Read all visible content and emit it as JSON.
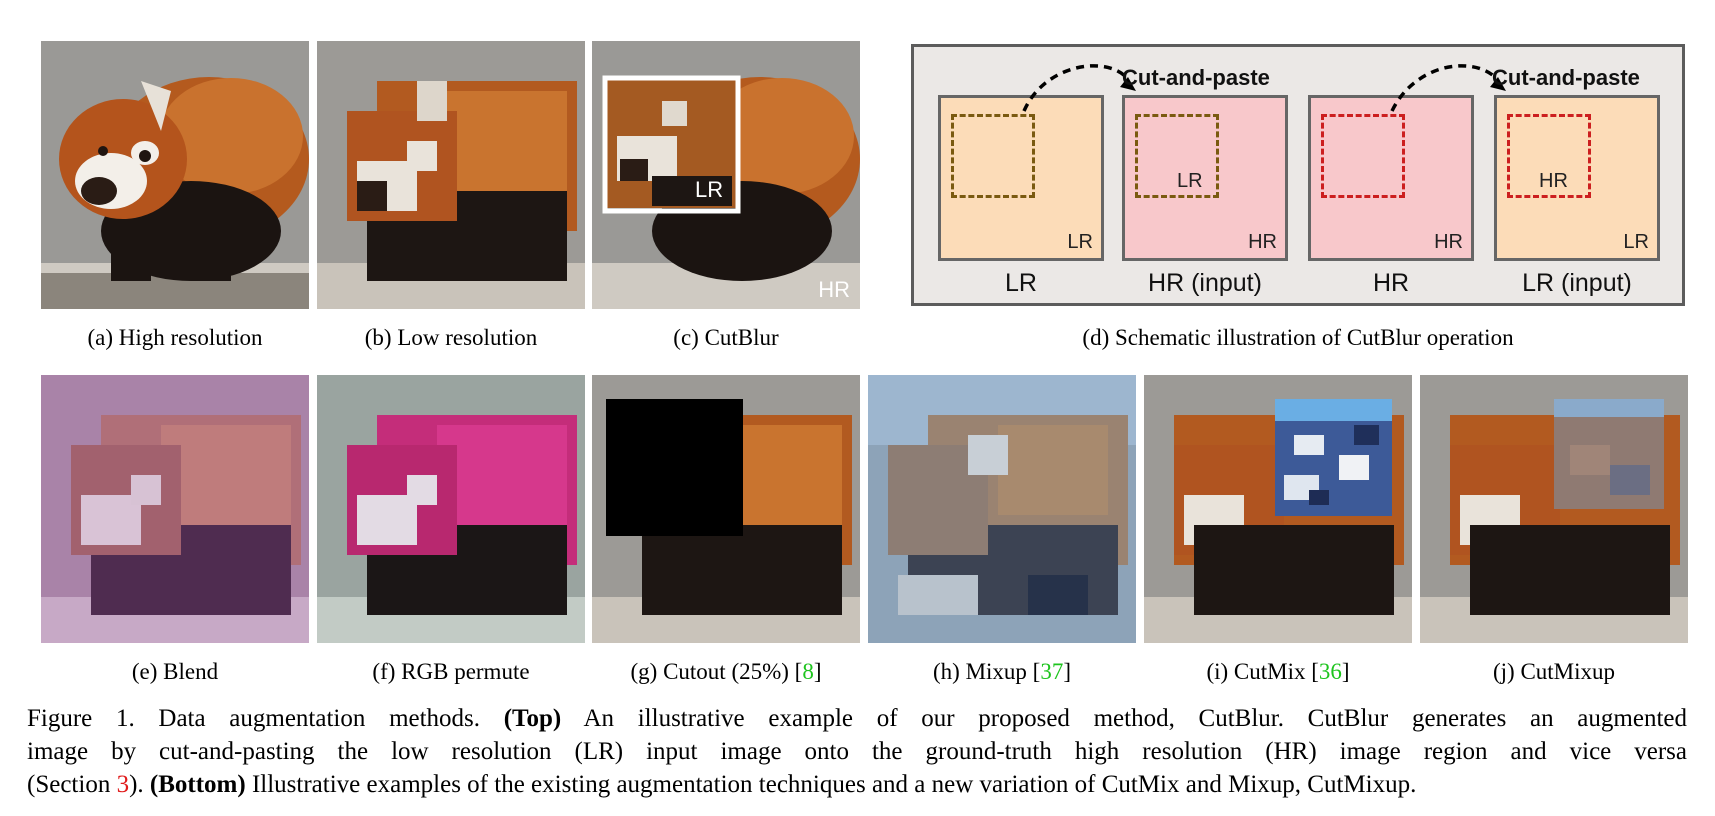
{
  "figure": {
    "top_captions": {
      "a": "(a)  High resolution",
      "b": "(b)  Low resolution",
      "c": "(c)  CutBlur",
      "d": "(d)  Schematic illustration of CutBlur operation"
    },
    "bottom_captions": {
      "e": "(e)  Blend",
      "f": "(f)  RGB permute",
      "g_text": "(g)  Cutout (25%) [",
      "g_ref": "8",
      "h_text": "(h)  Mixup [",
      "h_ref": "37",
      "i_text": "(i)  CutMix [",
      "i_ref": "36",
      "j": "(j)  CutMixup"
    },
    "panel_c_labels": {
      "inner": "LR",
      "outer": "HR"
    },
    "schematic": {
      "cut_and_paste": "Cut-and-paste",
      "boxes": [
        {
          "corner": "LR",
          "label": "LR",
          "inner_label": ""
        },
        {
          "corner": "HR",
          "label": "HR (input)",
          "inner_label": "LR"
        },
        {
          "corner": "HR",
          "label": "HR",
          "inner_label": ""
        },
        {
          "corner": "LR",
          "label": "LR (input)",
          "inner_label": "HR"
        }
      ]
    },
    "caption": {
      "line1_a": "Figure 1. Data augmentation methods. ",
      "line1_b": "(Top)",
      "line1_c": " An illustrative example of our proposed method, CutBlur. CutBlur generates an augmented",
      "line2": "image by cut-and-pasting the low resolution (LR) input image onto the ground-truth high resolution (HR) image region and vice versa",
      "line3_a": "(Section ",
      "line3_ref": "3",
      "line3_b": "). ",
      "line3_bold": "(Bottom)",
      "line3_c": " Illustrative examples of the existing augmentation techniques and a new variation of CutMix and Mixup, CutMixup."
    },
    "colors": {
      "lr_fill": "#fcdcb8",
      "hr_fill": "#f8c8cb",
      "lr_dash": "#7a5a10",
      "hr_dash": "#cc1f1f",
      "reference_link": "#1ec41e",
      "section_link": "#e01b1b"
    }
  }
}
